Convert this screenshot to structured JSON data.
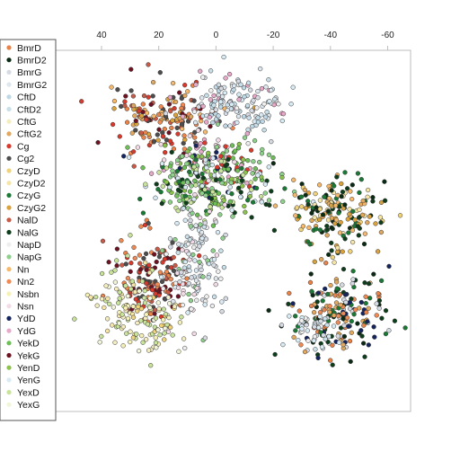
{
  "chart_data": {
    "type": "scatter",
    "title": "",
    "xlabel": "",
    "ylabel": "",
    "x_axis_position": "top",
    "x_reversed": true,
    "xlim": [
      56,
      -68
    ],
    "ylim": [
      0,
      100
    ],
    "xticks": [
      {
        "value": 40,
        "label": "40"
      },
      {
        "value": 20,
        "label": "20"
      },
      {
        "value": 0,
        "label": "0"
      },
      {
        "value": -20,
        "label": "-20"
      },
      {
        "value": -40,
        "label": "-40"
      },
      {
        "value": -60,
        "label": "-60"
      }
    ],
    "grid": false,
    "legend_position": "left",
    "series": [
      {
        "name": "BmrD",
        "color": "#e8834a"
      },
      {
        "name": "BmrD2",
        "color": "#0b2a14"
      },
      {
        "name": "BmrG",
        "color": "#d6dbe3"
      },
      {
        "name": "BmrG2",
        "color": "#dfe7ee"
      },
      {
        "name": "CftD",
        "color": "#bfd8e6"
      },
      {
        "name": "CftD2",
        "color": "#c9dfe9"
      },
      {
        "name": "CftG",
        "color": "#f3edc0"
      },
      {
        "name": "CftG2",
        "color": "#e1a95f"
      },
      {
        "name": "Cg",
        "color": "#d63b2d"
      },
      {
        "name": "Cg2",
        "color": "#4d4d4d"
      },
      {
        "name": "CzyD",
        "color": "#f0d37a"
      },
      {
        "name": "CzyD2",
        "color": "#f5e6a8"
      },
      {
        "name": "CzyG",
        "color": "#1a7a35"
      },
      {
        "name": "CzyG2",
        "color": "#d9a23c"
      },
      {
        "name": "NalD",
        "color": "#c85a48"
      },
      {
        "name": "NalG",
        "color": "#0e3d1c"
      },
      {
        "name": "NapD",
        "color": "#eeeeee"
      },
      {
        "name": "NapG",
        "color": "#8fd18c"
      },
      {
        "name": "Nn",
        "color": "#f6b96b"
      },
      {
        "name": "Nn2",
        "color": "#f08a55"
      },
      {
        "name": "Nsbn",
        "color": "#f6f1b5"
      },
      {
        "name": "Nsn",
        "color": "#f2dbe6"
      },
      {
        "name": "YdD",
        "color": "#14245e"
      },
      {
        "name": "YdG",
        "color": "#e6a9c8"
      },
      {
        "name": "YekD",
        "color": "#6fbf58"
      },
      {
        "name": "YekG",
        "color": "#6e1222"
      },
      {
        "name": "YenD",
        "color": "#8cc34d"
      },
      {
        "name": "YenG",
        "color": "#d8ebf5"
      },
      {
        "name": "YexD",
        "color": "#c9e49a"
      },
      {
        "name": "YexG",
        "color": "#f2f5d8"
      }
    ]
  }
}
